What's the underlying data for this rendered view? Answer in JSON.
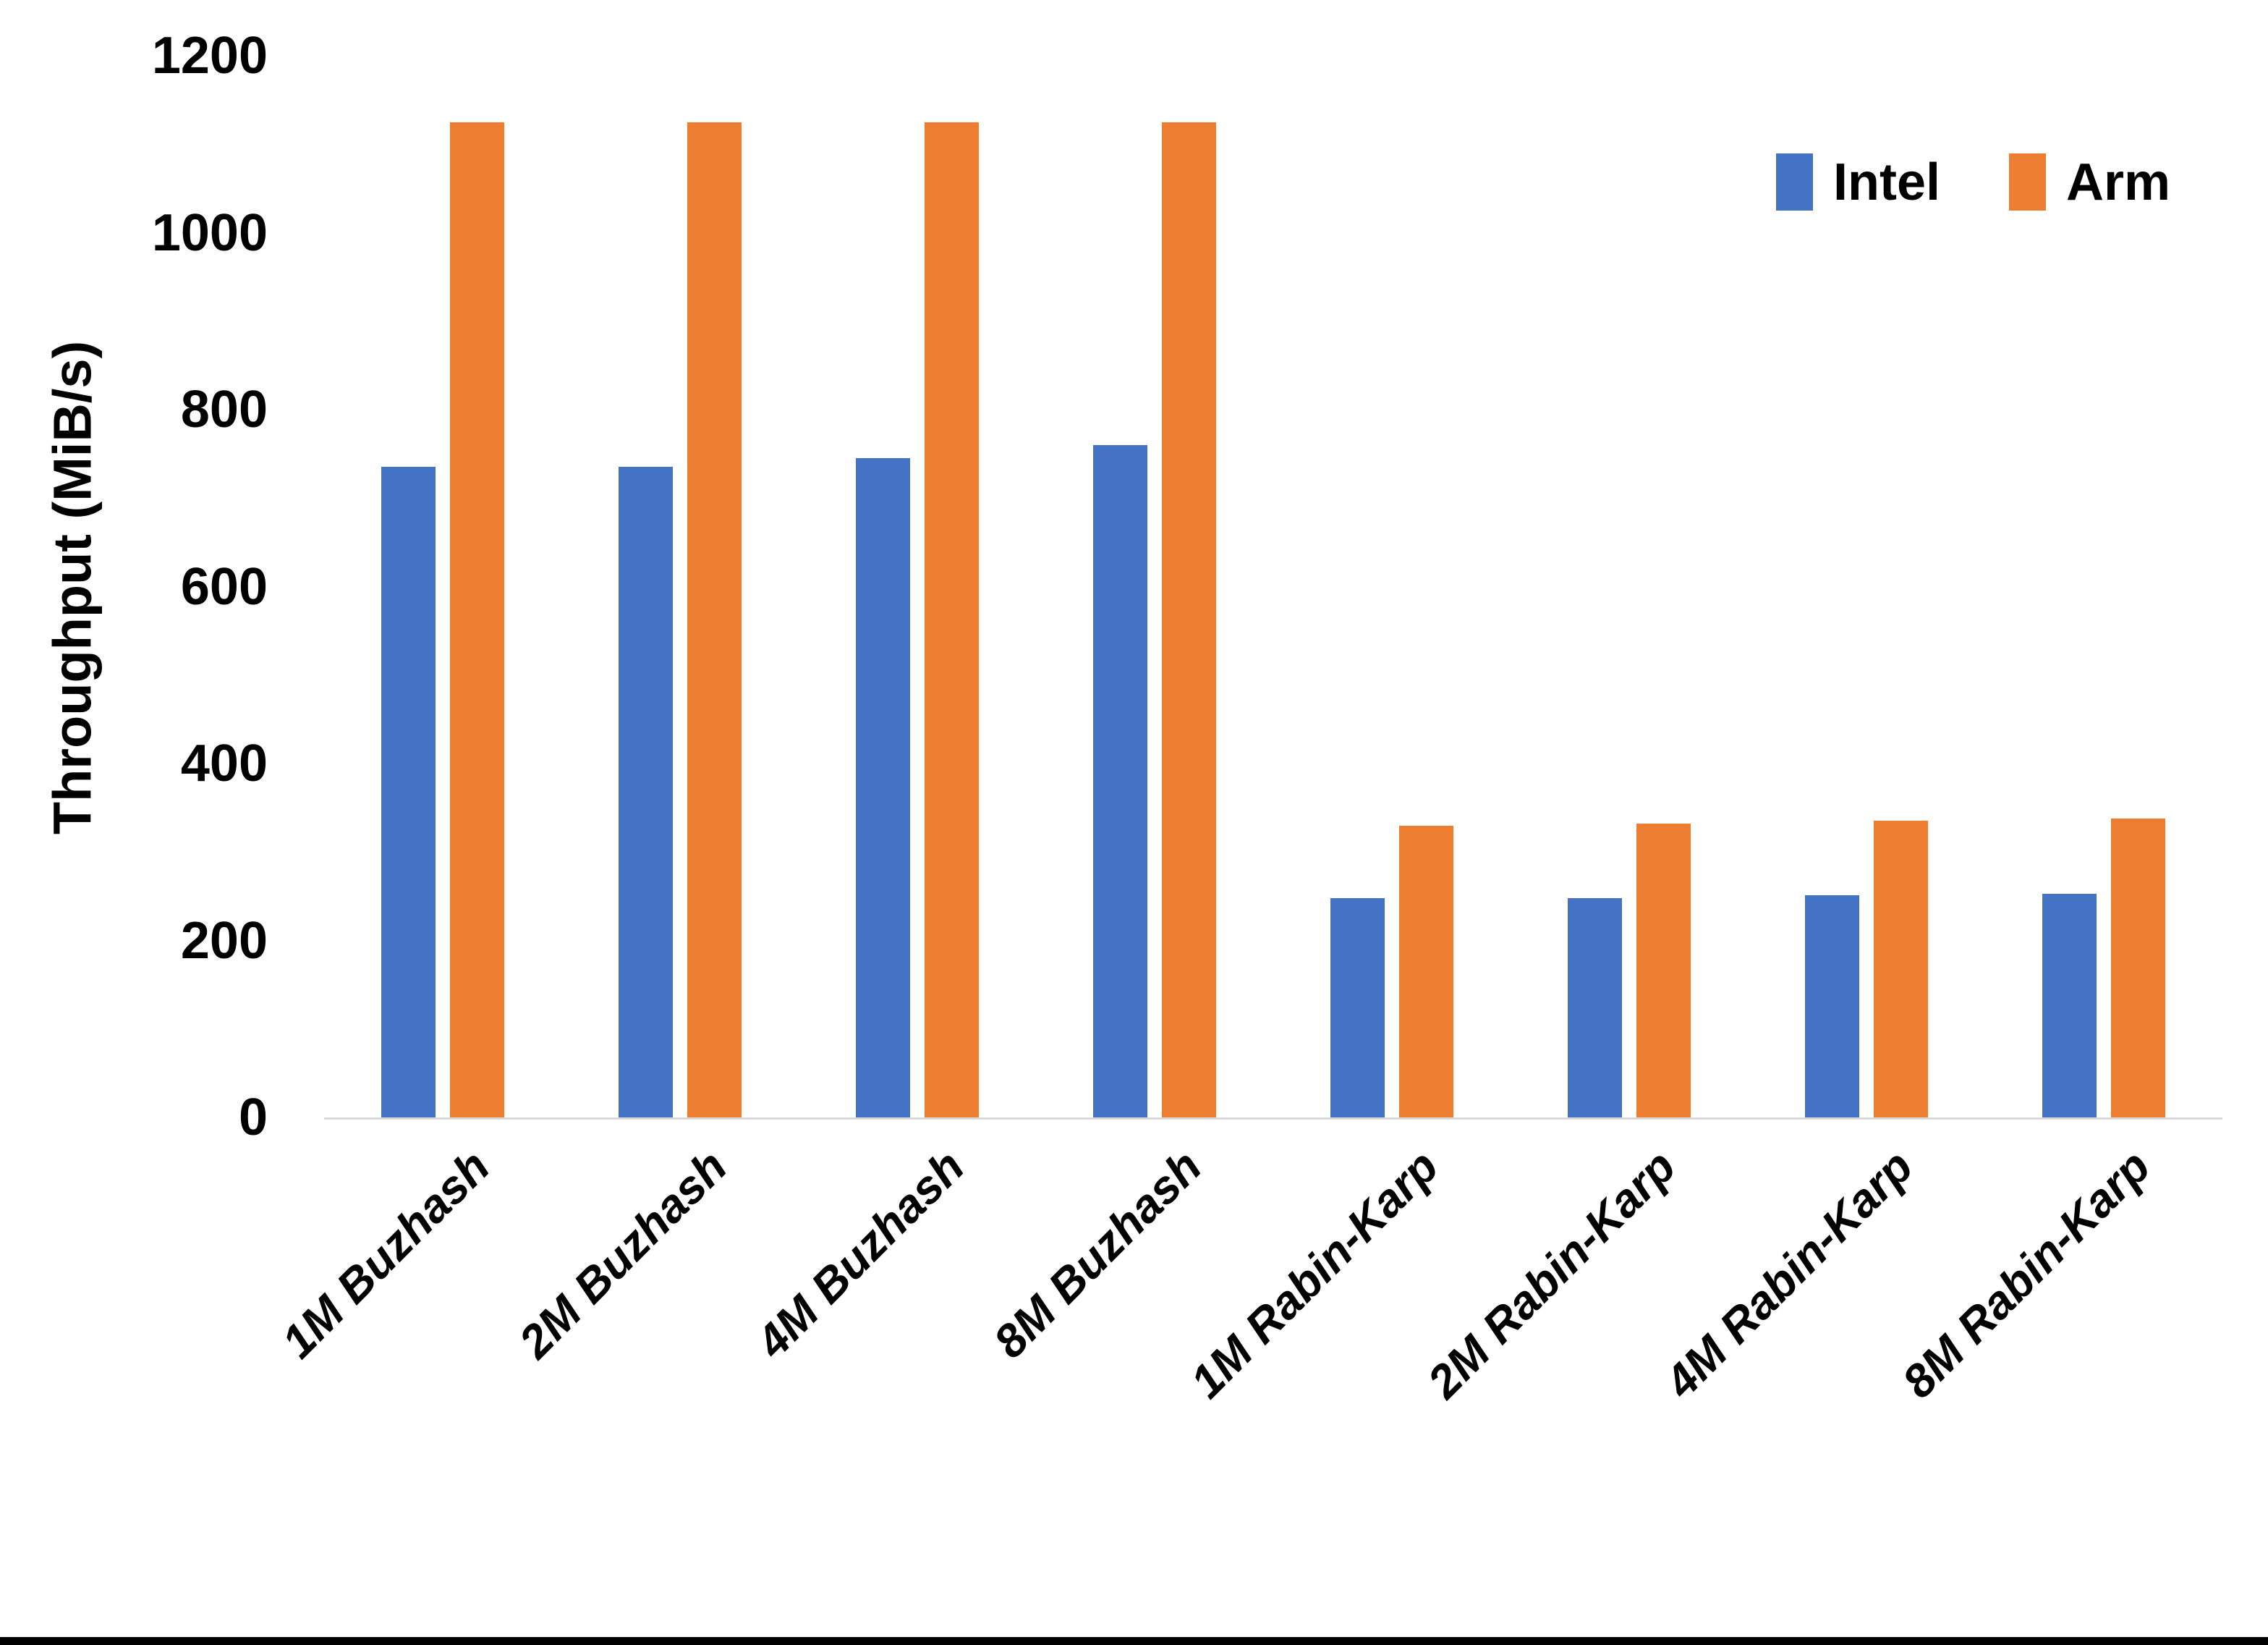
{
  "chart_data": {
    "type": "bar",
    "title": "",
    "xlabel": "",
    "ylabel": "Throughput (MiB/s)",
    "categories": [
      "1M Buzhash",
      "2M Buzhash",
      "4M Buzhash",
      "8M Buzhash",
      "1M Rabin-Karp",
      "2M Rabin-Karp",
      "4M Rabin-Karp",
      "8M Rabin-Karp"
    ],
    "series": [
      {
        "name": "Intel",
        "color": "#4472C4",
        "values": [
          735,
          735,
          745,
          760,
          248,
          248,
          251,
          253
        ]
      },
      {
        "name": "Arm",
        "color": "#ED7D31",
        "values": [
          1125,
          1125,
          1125,
          1125,
          330,
          332,
          335,
          338
        ]
      }
    ],
    "ylim": [
      0,
      1200
    ],
    "yticks": [
      0,
      200,
      400,
      600,
      800,
      1000,
      1200
    ],
    "grid": false,
    "legend_position": "top-right",
    "axis_line_color": "#d9d9d9"
  },
  "legend": {
    "items": [
      {
        "label": "Intel",
        "color": "#4472C4"
      },
      {
        "label": "Arm",
        "color": "#ED7D31"
      }
    ]
  }
}
